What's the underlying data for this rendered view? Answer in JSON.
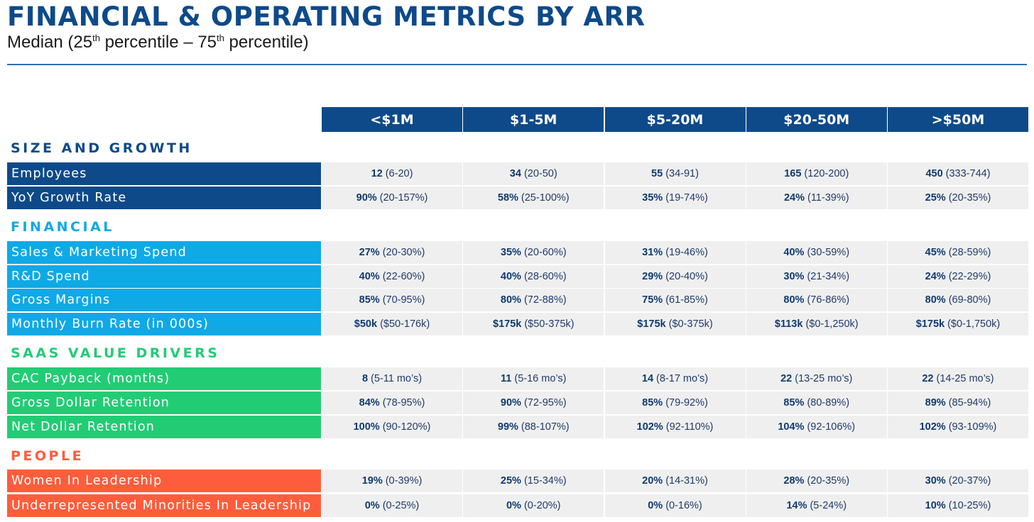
{
  "title": "FINANCIAL & OPERATING METRICS BY ARR",
  "subtitle": {
    "prefix": "Median (25",
    "sup1": "th",
    "middle": " percentile – 75",
    "sup2": "th",
    "suffix": " percentile)"
  },
  "colors": {
    "navy": "#0e4a8a",
    "cyan": "#0fa9e6",
    "green": "#22cc75",
    "orange": "#fd5d3c"
  },
  "columns": [
    "<$1M",
    "$1-5M",
    "$5-20M",
    "$20-50M",
    ">$50M"
  ],
  "sections": [
    {
      "title": "SIZE AND GROWTH",
      "rows": [
        {
          "label": "Employees",
          "cells": [
            {
              "median": "12",
              "range": "(6-20)"
            },
            {
              "median": "34",
              "range": "(20-50)"
            },
            {
              "median": "55",
              "range": "(34-91)"
            },
            {
              "median": "165",
              "range": "(120-200)"
            },
            {
              "median": "450",
              "range": "(333-744)"
            }
          ]
        },
        {
          "label": "YoY Growth Rate",
          "cells": [
            {
              "median": "90%",
              "range": "(20-157%)"
            },
            {
              "median": "58%",
              "range": "(25-100%)"
            },
            {
              "median": "35%",
              "range": "(19-74%)"
            },
            {
              "median": "24%",
              "range": "(11-39%)"
            },
            {
              "median": "25%",
              "range": "(20-35%)"
            }
          ]
        }
      ]
    },
    {
      "title": "FINANCIAL",
      "rows": [
        {
          "label": "Sales & Marketing Spend",
          "cells": [
            {
              "median": "27%",
              "range": "(20-30%)"
            },
            {
              "median": "35%",
              "range": "(20-60%)"
            },
            {
              "median": "31%",
              "range": "(19-46%)"
            },
            {
              "median": "40%",
              "range": "(30-59%)"
            },
            {
              "median": "45%",
              "range": "(28-59%)"
            }
          ]
        },
        {
          "label": "R&D Spend",
          "cells": [
            {
              "median": "40%",
              "range": "(22-60%)"
            },
            {
              "median": "40%",
              "range": "(28-60%)"
            },
            {
              "median": "29%",
              "range": "(20-40%)"
            },
            {
              "median": "30%",
              "range": "(21-34%)"
            },
            {
              "median": "24%",
              "range": "(22-29%)"
            }
          ]
        },
        {
          "label": "Gross Margins",
          "cells": [
            {
              "median": "85%",
              "range": "(70-95%)"
            },
            {
              "median": "80%",
              "range": "(72-88%)"
            },
            {
              "median": "75%",
              "range": "(61-85%)"
            },
            {
              "median": "80%",
              "range": "(76-86%)"
            },
            {
              "median": "80%",
              "range": "(69-80%)"
            }
          ]
        },
        {
          "label": "Monthly Burn Rate (in 000s)",
          "cells": [
            {
              "median": "$50k",
              "range": "($50-176k)"
            },
            {
              "median": "$175k",
              "range": "($50-375k)"
            },
            {
              "median": "$175k",
              "range": "($0-375k)"
            },
            {
              "median": "$113k",
              "range": "($0-1,250k)"
            },
            {
              "median": "$175k",
              "range": "($0-1,750k)"
            }
          ]
        }
      ]
    },
    {
      "title": "SAAS VALUE DRIVERS",
      "rows": [
        {
          "label": "CAC Payback (months)",
          "cells": [
            {
              "median": "8",
              "range": "(5-11 mo’s)"
            },
            {
              "median": "11",
              "range": "(5-16 mo’s)"
            },
            {
              "median": "14",
              "range": "(8-17 mo’s)"
            },
            {
              "median": "22",
              "range": "(13-25 mo’s)"
            },
            {
              "median": "22",
              "range": "(14-25 mo’s)"
            }
          ]
        },
        {
          "label": "Gross Dollar Retention",
          "cells": [
            {
              "median": "84%",
              "range": "(78-95%)"
            },
            {
              "median": "90%",
              "range": "(72-95%)"
            },
            {
              "median": "85%",
              "range": "(79-92%)"
            },
            {
              "median": "85%",
              "range": "(80-89%)"
            },
            {
              "median": "89%",
              "range": "(85-94%)"
            }
          ]
        },
        {
          "label": "Net Dollar Retention",
          "cells": [
            {
              "median": "100%",
              "range": "(90-120%)"
            },
            {
              "median": "99%",
              "range": "(88-107%)"
            },
            {
              "median": "102%",
              "range": "(92-110%)"
            },
            {
              "median": "104%",
              "range": "(92-106%)"
            },
            {
              "median": "102%",
              "range": "(93-109%)"
            }
          ]
        }
      ]
    },
    {
      "title": "PEOPLE",
      "rows": [
        {
          "label": "Women In Leadership",
          "cells": [
            {
              "median": "19%",
              "range": "(0-39%)"
            },
            {
              "median": "25%",
              "range": "(15-34%)"
            },
            {
              "median": "20%",
              "range": "(14-31%)"
            },
            {
              "median": "28%",
              "range": "(20-35%)"
            },
            {
              "median": "30%",
              "range": "(20-37%)"
            }
          ]
        },
        {
          "label": "Underrepresented Minorities In Leadership",
          "cells": [
            {
              "median": "0%",
              "range": "(0-25%)"
            },
            {
              "median": "0%",
              "range": "(0-20%)"
            },
            {
              "median": "0%",
              "range": "(0-16%)"
            },
            {
              "median": "14%",
              "range": "(5-24%)"
            },
            {
              "median": "10%",
              "range": "(10-25%)"
            }
          ]
        }
      ]
    }
  ]
}
